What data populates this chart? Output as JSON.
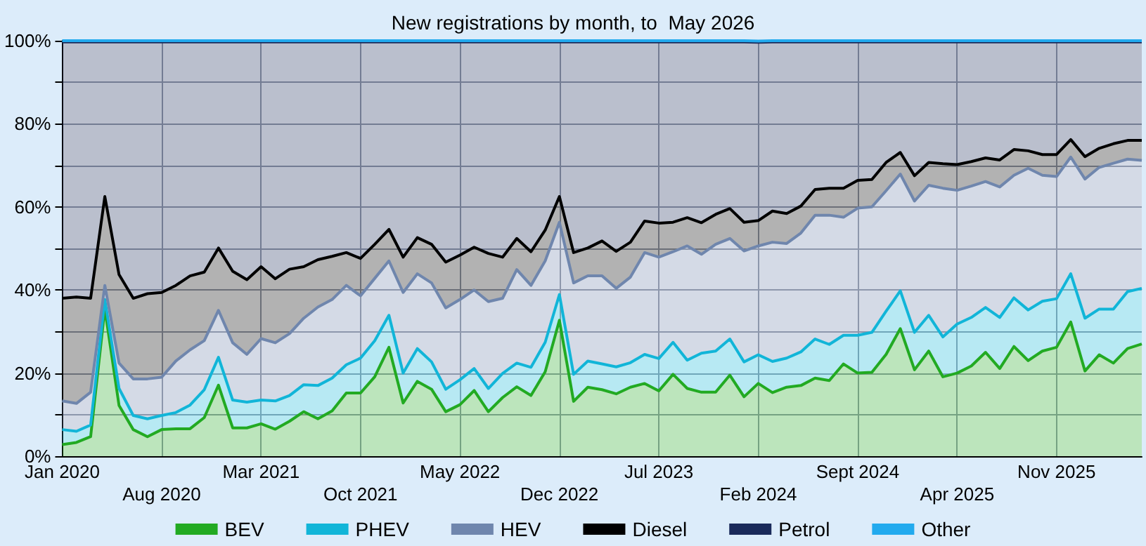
{
  "chart_data": {
    "type": "area",
    "title": "New registrations by month, to  May 2026",
    "stacked": true,
    "grid": true,
    "legend": "bottom",
    "marker": "none",
    "categories": [
      "Jan 2020",
      null,
      null,
      null,
      null,
      null,
      null,
      "Aug 2020",
      null,
      null,
      null,
      null,
      null,
      null,
      "Mar 2021",
      null,
      null,
      null,
      null,
      null,
      null,
      "Oct 2021",
      null,
      null,
      null,
      null,
      null,
      null,
      "May 2022",
      null,
      null,
      null,
      null,
      null,
      null,
      "Dec 2022",
      null,
      null,
      null,
      null,
      null,
      null,
      "Jul 2023",
      null,
      null,
      null,
      null,
      null,
      null,
      "Feb 2024",
      null,
      null,
      null,
      null,
      null,
      null,
      "Sept 2024",
      null,
      null,
      null,
      null,
      null,
      null,
      "Apr 2025",
      null,
      null,
      null,
      null,
      null,
      null,
      "Nov 2025",
      null,
      null,
      null,
      null,
      null,
      null
    ],
    "ylim": [
      0,
      100
    ],
    "yticks": [
      {
        "value": 0,
        "label": "0%"
      },
      {
        "value": 10,
        "label": null
      },
      {
        "value": 20,
        "label": "20%"
      },
      {
        "value": 30,
        "label": null
      },
      {
        "value": 40,
        "label": "40%"
      },
      {
        "value": 50,
        "label": null
      },
      {
        "value": 60,
        "label": "60%"
      },
      {
        "value": 70,
        "label": null
      },
      {
        "value": 80,
        "label": "80%"
      },
      {
        "value": 90,
        "label": null
      },
      {
        "value": 100,
        "label": "100%"
      }
    ],
    "series": [
      {
        "name": "BEV",
        "color": "#22aa22",
        "values": [
          2.8,
          3.3,
          4.7,
          35.5,
          12.2,
          6.4,
          4.7,
          6.4,
          6.6,
          6.6,
          9.3,
          17.1,
          6.8,
          6.8,
          7.8,
          6.5,
          8.4,
          10.7,
          9.0,
          10.9,
          15.2,
          15.2,
          19.1,
          26.2,
          12.8,
          18.0,
          16.1,
          10.7,
          12.4,
          15.8,
          10.7,
          14.1,
          16.7,
          14.6,
          20.3,
          32.7,
          13.2,
          16.6,
          16.0,
          15.0,
          16.6,
          17.5,
          15.7,
          19.7,
          16.3,
          15.4,
          15.4,
          19.5,
          14.3,
          17.5,
          15.3,
          16.6,
          17.0,
          18.8,
          18.2,
          22.2,
          20.0,
          20.2,
          24.5,
          30.7,
          20.8,
          25.3,
          19.1,
          20.0,
          21.7,
          25.0,
          21.1,
          26.4,
          23.0,
          25.3,
          26.2,
          32.3,
          20.5,
          24.4,
          22.4,
          25.9,
          27.0
        ]
      },
      {
        "name": "PHEV",
        "color": "#11b5d8",
        "values": [
          3.6,
          2.7,
          2.8,
          2.2,
          4.1,
          3.4,
          4.3,
          3.4,
          3.9,
          5.7,
          6.7,
          6.7,
          6.7,
          6.2,
          5.7,
          6.8,
          6.2,
          6.5,
          8.0,
          7.9,
          6.8,
          8.4,
          8.7,
          7.7,
          7.2,
          7.9,
          6.6,
          5.4,
          6.0,
          5.3,
          5.6,
          5.8,
          5.7,
          6.8,
          7.1,
          6.2,
          6.5,
          6.3,
          6.2,
          6.5,
          5.9,
          7.0,
          7.8,
          7.7,
          6.8,
          9.4,
          9.9,
          8.7,
          8.4,
          6.9,
          7.5,
          7.0,
          8.1,
          9.4,
          8.7,
          6.9,
          9.1,
          9.6,
          10.4,
          9.1,
          9.0,
          8.6,
          9.6,
          11.8,
          11.7,
          10.8,
          12.3,
          11.7,
          12.2,
          12.0,
          11.7,
          11.6,
          12.7,
          11.0,
          13.0,
          13.7,
          13.4
        ]
      },
      {
        "name": "HEV",
        "color": "#6f86ad",
        "values": [
          6.9,
          6.7,
          7.9,
          3.4,
          6.1,
          8.8,
          9.6,
          9.2,
          12.4,
          13.3,
          11.8,
          11.3,
          13.8,
          11.5,
          14.8,
          14.0,
          14.9,
          16.0,
          18.9,
          18.9,
          19.1,
          15.0,
          15.0,
          13.1,
          19.4,
          18.0,
          19.0,
          19.6,
          19.3,
          18.9,
          20.9,
          18.1,
          22.5,
          19.7,
          19.6,
          17.4,
          22.0,
          20.5,
          21.2,
          18.9,
          20.6,
          24.5,
          24.4,
          21.8,
          27.5,
          23.8,
          25.7,
          24.2,
          26.7,
          26.2,
          28.7,
          27.6,
          28.6,
          29.8,
          31.1,
          28.4,
          30.6,
          30.2,
          29.0,
          28.1,
          31.6,
          31.3,
          35.8,
          32.2,
          31.6,
          30.3,
          31.4,
          29.5,
          34.1,
          30.3,
          29.4,
          28.1,
          33.5,
          34.1,
          35.1,
          31.9,
          30.8
        ]
      },
      {
        "name": "Diesel",
        "color": "#000000",
        "values": [
          24.7,
          25.6,
          22.6,
          21.4,
          21.3,
          19.4,
          20.5,
          20.4,
          18.2,
          17.8,
          16.5,
          15.0,
          17.2,
          18.0,
          17.3,
          15.4,
          15.5,
          12.4,
          11.4,
          10.4,
          7.9,
          9.0,
          8.2,
          7.6,
          8.5,
          8.7,
          9.3,
          11.0,
          10.7,
          10.3,
          11.6,
          9.9,
          7.5,
          8.1,
          7.4,
          6.2,
          7.3,
          6.7,
          8.4,
          8.9,
          8.4,
          7.6,
          8.2,
          7.1,
          6.8,
          7.6,
          7.2,
          7.2,
          6.9,
          6.1,
          7.5,
          7.2,
          6.5,
          6.2,
          6.5,
          7.0,
          6.7,
          6.6,
          6.8,
          5.2,
          6.1,
          5.5,
          5.9,
          6.2,
          5.9,
          5.7,
          6.5,
          6.2,
          4.2,
          5.0,
          5.3,
          4.2,
          5.4,
          4.6,
          4.7,
          4.5,
          4.8
        ]
      },
      {
        "name": "Petrol",
        "color": "#1a2a5a",
        "values": [
          61.7,
          61.4,
          61.7,
          37.2,
          56.0,
          61.7,
          60.6,
          60.3,
          58.6,
          56.3,
          55.4,
          49.6,
          55.2,
          57.2,
          54.1,
          57.0,
          54.7,
          54.1,
          52.4,
          51.6,
          50.7,
          52.1,
          48.7,
          45.1,
          51.8,
          47.1,
          48.7,
          53.0,
          51.3,
          49.4,
          50.9,
          51.8,
          47.3,
          50.5,
          45.3,
          37.2,
          50.7,
          49.6,
          47.9,
          50.4,
          48.2,
          43.1,
          43.6,
          43.4,
          42.3,
          43.5,
          41.5,
          40.1,
          43.4,
          42.9,
          40.7,
          41.3,
          39.5,
          35.5,
          35.2,
          35.2,
          33.3,
          33.1,
          29.0,
          26.6,
          32.2,
          29.0,
          29.3,
          29.5,
          28.8,
          27.9,
          28.4,
          25.9,
          26.2,
          27.1,
          27.1,
          23.5,
          27.6,
          25.6,
          24.5,
          23.7,
          23.7
        ]
      },
      {
        "name": "Other",
        "color": "#22aaee",
        "values": [
          0.3,
          0.3,
          0.3,
          0.3,
          0.3,
          0.3,
          0.3,
          0.3,
          0.3,
          0.3,
          0.3,
          0.3,
          0.3,
          0.3,
          0.3,
          0.3,
          0.3,
          0.3,
          0.3,
          0.3,
          0.3,
          0.3,
          0.3,
          0.3,
          0.3,
          0.3,
          0.3,
          0.3,
          0.3,
          0.3,
          0.3,
          0.3,
          0.3,
          0.3,
          0.3,
          0.3,
          0.3,
          0.3,
          0.3,
          0.3,
          0.3,
          0.3,
          0.3,
          0.3,
          0.3,
          0.3,
          0.3,
          0.3,
          0.3,
          0.3,
          0.3,
          0.3,
          0.3,
          0.3,
          0.3,
          0.3,
          0.3,
          0.3,
          0.3,
          0.3,
          0.3,
          0.3,
          0.3,
          0.3,
          0.3,
          0.3,
          0.3,
          0.3,
          0.3,
          0.3,
          0.3,
          0.3,
          0.3,
          0.3,
          0.3,
          0.3,
          0.3
        ]
      }
    ]
  }
}
